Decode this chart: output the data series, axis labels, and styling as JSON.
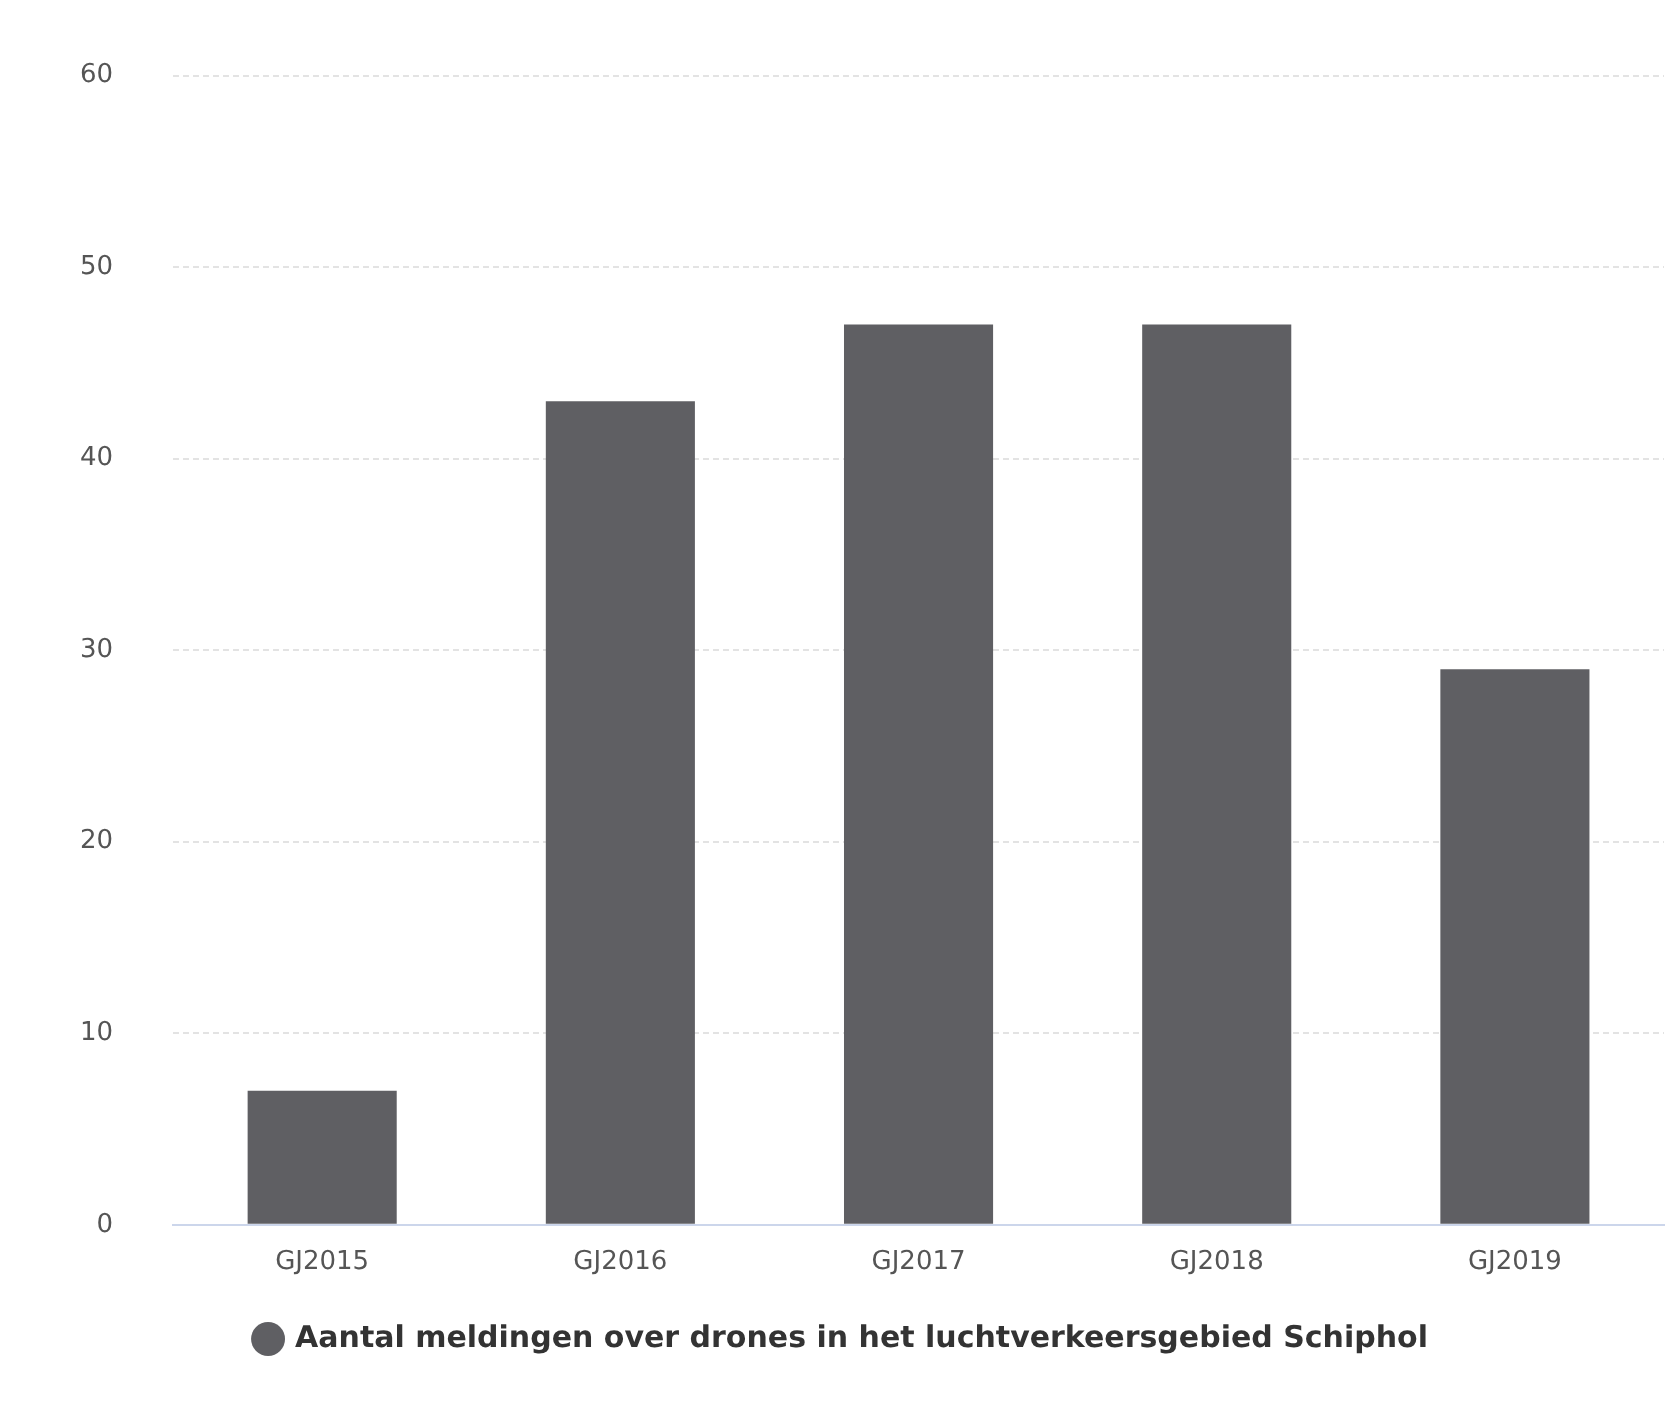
{
  "chart_data": {
    "type": "bar",
    "categories": [
      "GJ2015",
      "GJ2016",
      "GJ2017",
      "GJ2018",
      "GJ2019"
    ],
    "series": [
      {
        "name": "Aantal meldingen over drones in het luchtverkeersgebied Schiphol",
        "color": "#5f5f63",
        "values": [
          7,
          43,
          47,
          47,
          29
        ]
      }
    ],
    "ylim": [
      0,
      60
    ],
    "yticks": [
      0,
      10,
      20,
      30,
      40,
      50,
      60
    ],
    "grid": "y",
    "legend": "bottom"
  }
}
